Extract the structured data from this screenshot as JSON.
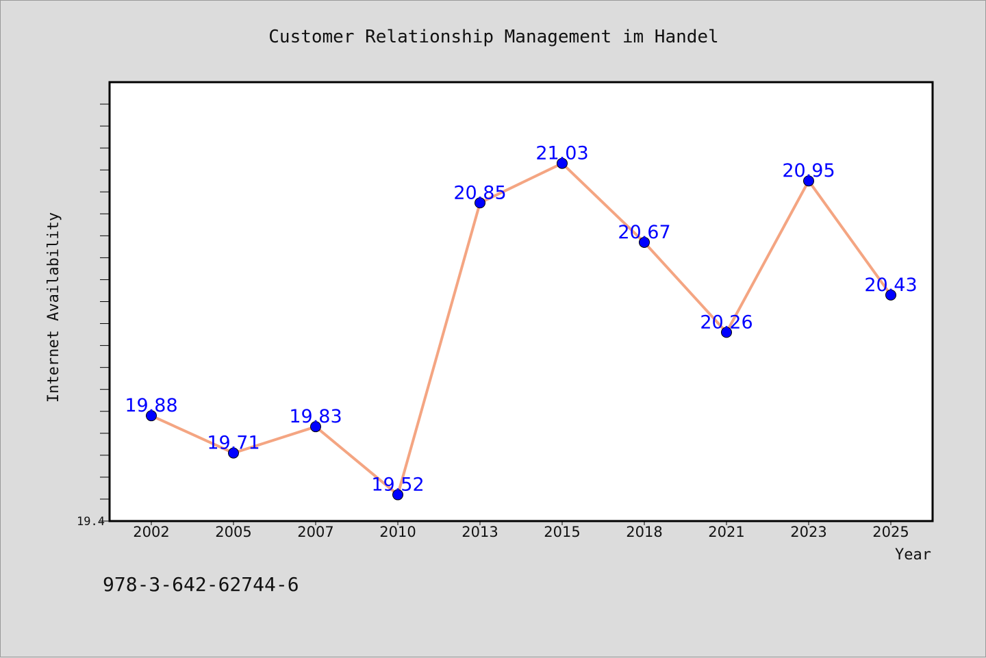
{
  "caption": "978-3-642-62744-6",
  "chart_data": {
    "type": "line",
    "title": "Customer Relationship Management im Handel",
    "xlabel": "Year",
    "ylabel": "Internet Availability",
    "categories": [
      "2002",
      "2005",
      "2007",
      "2010",
      "2013",
      "2015",
      "2018",
      "2021",
      "2023",
      "2025"
    ],
    "series": [
      {
        "values": [
          19.88,
          19.71,
          19.83,
          19.52,
          20.85,
          21.03,
          20.67,
          20.26,
          20.95,
          20.43
        ]
      }
    ],
    "data_labels": [
      "19.88",
      "19.71",
      "19.83",
      "19.52",
      "20.85",
      "21.03",
      "20.67",
      "20.26",
      "20.95",
      "20.43"
    ],
    "ylim": [
      19.4,
      21.4
    ],
    "ytick_labels": [
      "19.4"
    ],
    "y_minor_tick_step": 0.1,
    "grid": false,
    "colors": {
      "line": "#f4a582",
      "marker": "#0000ff",
      "label": "#0000ff"
    }
  }
}
